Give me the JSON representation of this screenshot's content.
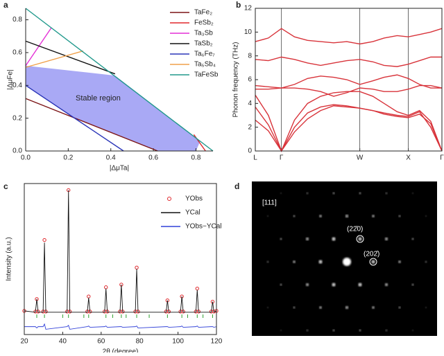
{
  "chart_data": [
    {
      "type": "line",
      "panel_label": "a",
      "x_label": "|ΔμTa|",
      "y_label": "|ΔμFe|",
      "xlim": [
        0,
        0.88
      ],
      "ylim": [
        0,
        0.87
      ],
      "xticks": [
        {
          "value": 0,
          "label": "0.0"
        },
        {
          "value": 0.2,
          "label": "0.2"
        },
        {
          "value": 0.4,
          "label": "0.4"
        },
        {
          "value": 0.6,
          "label": "0.6"
        },
        {
          "value": 0.8,
          "label": "0.8"
        }
      ],
      "yticks": [
        {
          "value": 0,
          "label": "0.0"
        },
        {
          "value": 0.2,
          "label": "0.2"
        },
        {
          "value": 0.4,
          "label": "0.4"
        },
        {
          "value": 0.6,
          "label": "0.6"
        },
        {
          "value": 0.8,
          "label": "0.8"
        }
      ],
      "region": {
        "name": "Stable region",
        "color": "#a9a9f5",
        "x": [
          0,
          0,
          0.226,
          0.62,
          0.8,
          0.82,
          0.42
        ],
        "y": [
          0.52,
          0.4,
          0.203,
          0,
          0,
          0.06,
          0.46
        ]
      },
      "series": [
        {
          "name": "TaFe₂",
          "color": "#7b1416",
          "x": [
            0,
            0.62
          ],
          "values": [
            0.32,
            0
          ]
        },
        {
          "name": "FeSb₂",
          "color": "#e0262b",
          "x": [
            0.79,
            0.845
          ],
          "values": [
            0.1,
            0
          ]
        },
        {
          "name": "Ta₃Sb",
          "color": "#e42fd6",
          "x": [
            0,
            0.12
          ],
          "values": [
            0.52,
            0.75
          ]
        },
        {
          "name": "TaSb₂",
          "color": "#111111",
          "x": [
            0,
            0.42
          ],
          "values": [
            0.67,
            0.47
          ]
        },
        {
          "name": "Ta₆Fe₇",
          "color": "#2a35b8",
          "x": [
            0,
            0.46
          ],
          "values": [
            0.4,
            0
          ]
        },
        {
          "name": "Ta₅Sb₄",
          "color": "#f0a04a",
          "x": [
            0,
            0.27
          ],
          "values": [
            0.51,
            0.61
          ]
        },
        {
          "name": "TaFeSb",
          "color": "#21998c",
          "x": [
            0,
            0.88
          ],
          "values": [
            0.87,
            0
          ]
        }
      ]
    },
    {
      "type": "line",
      "panel_label": "b",
      "y_label": "Phonon frequency (THz)",
      "xlim": [
        0,
        1
      ],
      "ylim": [
        0,
        12
      ],
      "xgrid": true,
      "xticks": [
        {
          "value": 0,
          "label": "L"
        },
        {
          "value": 0.14,
          "label": "Γ"
        },
        {
          "value": 0.56,
          "label": "W"
        },
        {
          "value": 0.82,
          "label": "X"
        },
        {
          "value": 1,
          "label": "Γ"
        }
      ],
      "yticks": [
        0,
        2,
        4,
        6,
        8,
        10,
        12
      ],
      "x": [
        0,
        0.07,
        0.14,
        0.21,
        0.28,
        0.35,
        0.42,
        0.49,
        0.56,
        0.63,
        0.69,
        0.76,
        0.82,
        0.88,
        0.94,
        1
      ],
      "series": [
        {
          "color": "#d8333a",
          "values": [
            9.2,
            9.5,
            10.3,
            9.6,
            9.3,
            9.2,
            9.1,
            9.2,
            9.0,
            9.2,
            9.5,
            9.7,
            9.6,
            9.8,
            10.0,
            10.3
          ]
        },
        {
          "color": "#d8333a",
          "values": [
            7.7,
            7.6,
            7.9,
            7.7,
            7.4,
            7.2,
            7.4,
            7.6,
            7.7,
            7.5,
            7.2,
            7.1,
            7.3,
            7.6,
            7.9,
            7.9
          ]
        },
        {
          "color": "#d8333a",
          "values": [
            5.5,
            5.4,
            5.3,
            5.6,
            6.1,
            6.3,
            6.2,
            6.0,
            5.6,
            5.9,
            6.2,
            6.4,
            6.1,
            5.6,
            5.3,
            5.3
          ]
        },
        {
          "color": "#d8333a",
          "values": [
            5.2,
            5.2,
            5.3,
            5.3,
            5.2,
            5.0,
            4.6,
            4.9,
            5.3,
            5.2,
            5.0,
            5.0,
            5.2,
            5.5,
            5.5,
            5.3
          ]
        },
        {
          "color": "#d8333a",
          "values": [
            4.7,
            3.0,
            0,
            2.6,
            4.0,
            4.6,
            4.9,
            5.0,
            5.0,
            4.6,
            4.0,
            3.3,
            3.0,
            3.4,
            2.5,
            0
          ]
        },
        {
          "color": "#d8333a",
          "values": [
            3.7,
            2.2,
            0,
            2.0,
            3.2,
            3.7,
            3.9,
            3.8,
            3.6,
            3.4,
            3.2,
            3.0,
            2.9,
            3.3,
            2.0,
            0
          ]
        },
        {
          "color": "#d8333a",
          "values": [
            2.6,
            1.7,
            0,
            1.6,
            2.7,
            3.4,
            3.8,
            3.7,
            3.6,
            3.4,
            3.1,
            2.9,
            2.8,
            3.1,
            2.3,
            0
          ]
        }
      ]
    },
    {
      "type": "line",
      "panel_label": "c",
      "x_label": "2θ (degree)",
      "y_label": "Intensity (a.u.)",
      "xlim": [
        20,
        120
      ],
      "ylim": [
        -0.1,
        1.05
      ],
      "xticks": [
        20,
        40,
        60,
        80,
        100,
        120
      ],
      "x": [
        20,
        25.8,
        26.5,
        27.2,
        29.8,
        30.5,
        31.2,
        42.3,
        43,
        43.7,
        52.8,
        53.5,
        54.2,
        61.8,
        62.5,
        63.2,
        69.8,
        70.5,
        71.2,
        77.8,
        78.5,
        79.2,
        93.8,
        94.5,
        95.2,
        101.3,
        102,
        102.7,
        109.3,
        110,
        110.7,
        117.3,
        118,
        118.7,
        120
      ],
      "series": [
        {
          "name": "YObs",
          "color": "#e0262b",
          "marker": "circle",
          "values": [
            0.08,
            0.075,
            0.17,
            0.075,
            0.075,
            0.62,
            0.075,
            0.075,
            1.0,
            0.075,
            0.075,
            0.19,
            0.075,
            0.075,
            0.26,
            0.075,
            0.075,
            0.28,
            0.075,
            0.075,
            0.41,
            0.075,
            0.075,
            0.16,
            0.075,
            0.075,
            0.19,
            0.075,
            0.075,
            0.25,
            0.075,
            0.075,
            0.15,
            0.075,
            0.08
          ]
        },
        {
          "name": "YCal",
          "color": "#111111",
          "values": [
            0.08,
            0.07,
            0.17,
            0.07,
            0.07,
            0.6,
            0.07,
            0.07,
            1.0,
            0.07,
            0.07,
            0.18,
            0.07,
            0.07,
            0.25,
            0.07,
            0.07,
            0.28,
            0.07,
            0.07,
            0.4,
            0.07,
            0.07,
            0.16,
            0.07,
            0.07,
            0.19,
            0.07,
            0.07,
            0.24,
            0.07,
            0.07,
            0.15,
            0.07,
            0.08
          ]
        },
        {
          "name": "YObs−YCal",
          "color": "#3040d8",
          "values": [
            -0.04,
            -0.04,
            -0.05,
            -0.04,
            -0.04,
            -0.02,
            -0.06,
            -0.04,
            -0.03,
            -0.06,
            -0.04,
            -0.035,
            -0.045,
            -0.04,
            -0.035,
            -0.045,
            -0.04,
            -0.04,
            -0.045,
            -0.04,
            -0.035,
            -0.05,
            -0.04,
            -0.04,
            -0.045,
            -0.04,
            -0.035,
            -0.045,
            -0.04,
            -0.035,
            -0.045,
            -0.04,
            -0.04,
            -0.045,
            -0.04
          ]
        }
      ],
      "bragg_peaks": {
        "color": "#2ca02c",
        "x": [
          26.5,
          30.5,
          40,
          43,
          51,
          53.5,
          62.5,
          66,
          70.5,
          73,
          78.5,
          85,
          94.5,
          102,
          105,
          110,
          113,
          118
        ]
      }
    }
  ],
  "diffraction_pattern": {
    "panel_label": "d",
    "zone_axis": "[111]",
    "spot_labels": [
      "(22̄0)",
      "(202̄)"
    ]
  }
}
